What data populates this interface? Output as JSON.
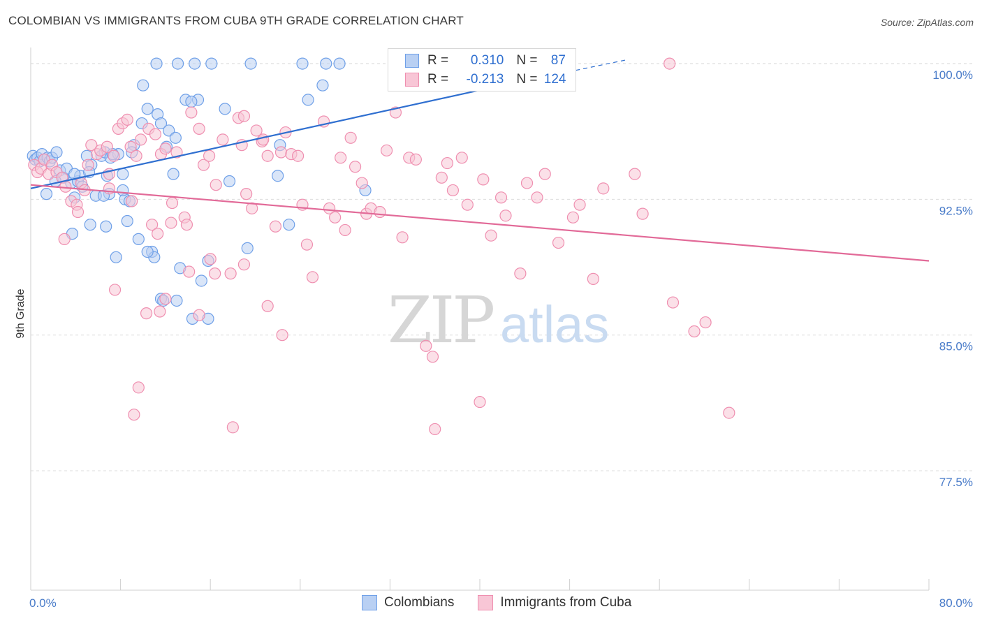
{
  "title": "COLOMBIAN VS IMMIGRANTS FROM CUBA 9TH GRADE CORRELATION CHART",
  "source": "Source: ZipAtlas.com",
  "watermark": {
    "zip": "ZIP",
    "atlas": "atlas"
  },
  "legend": {
    "rows": [
      {
        "r_label": "R = ",
        "r_value": "0.310",
        "n_label": "N = ",
        "n_value": "87",
        "color": "#6fa0e8"
      },
      {
        "r_label": "R = ",
        "r_value": "-0.213",
        "n_label": "N = ",
        "n_value": "124",
        "color": "#ef8fb0"
      }
    ]
  },
  "bottom_legend": {
    "series1": "Colombians",
    "series2": "Immigrants from Cuba"
  },
  "colors": {
    "blue_fill": "#b9d0f3",
    "blue_edge": "#6fa0e8",
    "blue_line": "#2f6fd0",
    "pink_fill": "#f8c6d6",
    "pink_edge": "#ef8fb0",
    "pink_line": "#e26a98",
    "grid": "#dcdcdc",
    "tick": "#4a7cc9"
  },
  "chart_data": {
    "type": "scatter",
    "title": "COLOMBIAN VS IMMIGRANTS FROM CUBA 9TH GRADE CORRELATION CHART",
    "xlabel": "",
    "ylabel": "9th Grade",
    "xlim": [
      0,
      80
    ],
    "ylim": [
      70.9,
      101.2
    ],
    "x_tick_labels": [
      "0.0%",
      "80.0%"
    ],
    "y_ticks": [
      77.5,
      85.0,
      92.5,
      100.0
    ],
    "y_tick_labels": [
      "77.5%",
      "85.0%",
      "92.5%",
      "100.0%"
    ],
    "grid": true,
    "legend_position": "top-center",
    "series": [
      {
        "name": "Colombians",
        "R": 0.31,
        "N": 87,
        "trend": {
          "x": [
            0,
            40.5
          ],
          "y": [
            93.1,
            98.6
          ]
        },
        "trend_dashed": {
          "x": [
            40.5,
            53
          ],
          "y": [
            98.6,
            100.2
          ]
        },
        "points": [
          [
            0.2,
            94.9
          ],
          [
            0.4,
            94.7
          ],
          [
            0.6,
            94.8
          ],
          [
            0.8,
            94.6
          ],
          [
            1.0,
            95.0
          ],
          [
            1.2,
            94.7
          ],
          [
            1.5,
            94.8
          ],
          [
            1.7,
            94.6
          ],
          [
            1.9,
            94.8
          ],
          [
            2.3,
            95.1
          ],
          [
            2.6,
            94.1
          ],
          [
            2.9,
            93.7
          ],
          [
            3.2,
            94.2
          ],
          [
            3.6,
            93.4
          ],
          [
            3.9,
            92.6
          ],
          [
            4.2,
            93.5
          ],
          [
            4.4,
            93.8
          ],
          [
            5.0,
            94.9
          ],
          [
            5.4,
            94.4
          ],
          [
            5.8,
            92.7
          ],
          [
            6.3,
            94.9
          ],
          [
            6.6,
            95.1
          ],
          [
            7.1,
            94.8
          ],
          [
            7.8,
            95.0
          ],
          [
            8.2,
            93.9
          ],
          [
            8.4,
            92.5
          ],
          [
            9.2,
            95.5
          ],
          [
            9.9,
            96.7
          ],
          [
            10.4,
            97.5
          ],
          [
            11.3,
            97.2
          ],
          [
            11.6,
            96.7
          ],
          [
            12.3,
            96.3
          ],
          [
            12.9,
            95.9
          ],
          [
            13.8,
            98.0
          ],
          [
            14.9,
            98.0
          ],
          [
            14.3,
            97.9
          ],
          [
            11.2,
            100.0
          ],
          [
            13.1,
            100.0
          ],
          [
            14.6,
            100.0
          ],
          [
            16.1,
            100.0
          ],
          [
            19.6,
            100.0
          ],
          [
            24.2,
            100.0
          ],
          [
            26.3,
            100.0
          ],
          [
            27.5,
            100.0
          ],
          [
            33.4,
            100.0
          ],
          [
            34.0,
            100.0
          ],
          [
            10.0,
            98.8
          ],
          [
            17.3,
            97.5
          ],
          [
            26.0,
            98.8
          ],
          [
            24.7,
            98.0
          ],
          [
            22.2,
            95.5
          ],
          [
            12.1,
            95.4
          ],
          [
            9.0,
            95.1
          ],
          [
            7.3,
            95.0
          ],
          [
            5.2,
            94.0
          ],
          [
            6.8,
            93.8
          ],
          [
            4.6,
            93.2
          ],
          [
            7.0,
            92.8
          ],
          [
            6.5,
            92.7
          ],
          [
            8.8,
            92.4
          ],
          [
            1.4,
            92.8
          ],
          [
            5.3,
            91.1
          ],
          [
            6.7,
            91.0
          ],
          [
            8.6,
            91.3
          ],
          [
            9.6,
            90.3
          ],
          [
            10.8,
            89.6
          ],
          [
            11.0,
            89.3
          ],
          [
            3.7,
            90.6
          ],
          [
            12.7,
            93.9
          ],
          [
            13.3,
            88.7
          ],
          [
            15.8,
            89.1
          ],
          [
            15.2,
            88.0
          ],
          [
            11.6,
            87.0
          ],
          [
            15.8,
            85.9
          ],
          [
            14.4,
            85.9
          ],
          [
            13.0,
            86.9
          ],
          [
            11.8,
            86.9
          ],
          [
            19.3,
            89.8
          ],
          [
            23.0,
            91.1
          ],
          [
            22.0,
            93.8
          ],
          [
            29.8,
            93.0
          ],
          [
            17.7,
            93.5
          ],
          [
            8.2,
            93.0
          ],
          [
            7.6,
            89.3
          ],
          [
            10.4,
            89.6
          ],
          [
            3.9,
            93.9
          ],
          [
            2.2,
            93.5
          ]
        ]
      },
      {
        "name": "Immigrants from Cuba",
        "R": -0.213,
        "N": 124,
        "trend": {
          "x": [
            0,
            80
          ],
          "y": [
            93.3,
            89.1
          ]
        },
        "points": [
          [
            0.3,
            94.4
          ],
          [
            0.6,
            94.0
          ],
          [
            0.9,
            94.2
          ],
          [
            1.2,
            94.7
          ],
          [
            1.6,
            93.9
          ],
          [
            1.9,
            94.4
          ],
          [
            2.3,
            94.0
          ],
          [
            2.8,
            93.7
          ],
          [
            3.1,
            93.2
          ],
          [
            3.6,
            92.4
          ],
          [
            4.1,
            92.2
          ],
          [
            4.5,
            93.4
          ],
          [
            5.1,
            94.4
          ],
          [
            5.4,
            95.5
          ],
          [
            5.9,
            95.0
          ],
          [
            6.2,
            95.2
          ],
          [
            6.8,
            95.4
          ],
          [
            7.0,
            93.1
          ],
          [
            7.4,
            94.9
          ],
          [
            7.8,
            96.4
          ],
          [
            8.2,
            96.7
          ],
          [
            8.6,
            96.9
          ],
          [
            8.9,
            95.4
          ],
          [
            9.4,
            94.9
          ],
          [
            9.8,
            95.8
          ],
          [
            10.5,
            96.4
          ],
          [
            11.1,
            96.1
          ],
          [
            11.6,
            95.0
          ],
          [
            12.0,
            95.3
          ],
          [
            12.6,
            92.3
          ],
          [
            13.0,
            95.1
          ],
          [
            14.3,
            97.3
          ],
          [
            15.0,
            96.4
          ],
          [
            15.4,
            94.4
          ],
          [
            15.9,
            94.9
          ],
          [
            16.5,
            93.3
          ],
          [
            17.1,
            95.8
          ],
          [
            18.5,
            97.0
          ],
          [
            18.8,
            95.5
          ],
          [
            19.2,
            92.8
          ],
          [
            19.7,
            92.0
          ],
          [
            20.1,
            96.3
          ],
          [
            20.6,
            95.7
          ],
          [
            21.1,
            94.9
          ],
          [
            21.8,
            91.0
          ],
          [
            22.3,
            95.1
          ],
          [
            22.7,
            96.2
          ],
          [
            23.2,
            95.0
          ],
          [
            23.8,
            94.9
          ],
          [
            24.2,
            92.2
          ],
          [
            24.6,
            90.0
          ],
          [
            25.1,
            88.2
          ],
          [
            26.1,
            96.8
          ],
          [
            26.6,
            92.0
          ],
          [
            27.1,
            91.5
          ],
          [
            27.6,
            94.8
          ],
          [
            28.0,
            90.8
          ],
          [
            28.5,
            95.9
          ],
          [
            28.9,
            94.3
          ],
          [
            29.5,
            93.4
          ],
          [
            29.9,
            91.7
          ],
          [
            30.3,
            92.0
          ],
          [
            31.1,
            91.8
          ],
          [
            31.7,
            95.2
          ],
          [
            32.5,
            97.3
          ],
          [
            33.1,
            90.4
          ],
          [
            33.7,
            94.8
          ],
          [
            34.3,
            94.7
          ],
          [
            35.2,
            84.4
          ],
          [
            35.8,
            83.8
          ],
          [
            36.6,
            93.7
          ],
          [
            37.1,
            94.5
          ],
          [
            37.6,
            93.0
          ],
          [
            38.4,
            94.8
          ],
          [
            38.9,
            92.2
          ],
          [
            40.3,
            93.6
          ],
          [
            41.0,
            90.5
          ],
          [
            41.9,
            92.6
          ],
          [
            42.3,
            91.6
          ],
          [
            43.6,
            88.4
          ],
          [
            44.2,
            93.4
          ],
          [
            45.1,
            92.6
          ],
          [
            45.8,
            93.9
          ],
          [
            47.0,
            90.1
          ],
          [
            48.3,
            91.5
          ],
          [
            48.9,
            92.2
          ],
          [
            50.1,
            88.1
          ],
          [
            51.0,
            93.1
          ],
          [
            53.8,
            93.9
          ],
          [
            54.5,
            91.7
          ],
          [
            56.9,
            100.0
          ],
          [
            57.2,
            86.8
          ],
          [
            59.1,
            85.2
          ],
          [
            60.1,
            85.7
          ],
          [
            62.2,
            80.7
          ],
          [
            40.0,
            81.3
          ],
          [
            36.0,
            79.8
          ],
          [
            18.0,
            79.9
          ],
          [
            9.6,
            82.1
          ],
          [
            9.2,
            80.6
          ],
          [
            7.5,
            87.5
          ],
          [
            10.3,
            86.2
          ],
          [
            11.5,
            86.3
          ],
          [
            12.0,
            87.0
          ],
          [
            14.1,
            88.5
          ],
          [
            15.0,
            86.1
          ],
          [
            16.4,
            88.4
          ],
          [
            17.8,
            88.4
          ],
          [
            19.0,
            88.9
          ],
          [
            21.1,
            86.6
          ],
          [
            22.4,
            85.0
          ],
          [
            7.0,
            93.9
          ],
          [
            3.0,
            90.3
          ],
          [
            4.2,
            91.8
          ],
          [
            9.0,
            92.4
          ],
          [
            10.8,
            91.1
          ],
          [
            11.3,
            90.6
          ],
          [
            13.7,
            91.5
          ],
          [
            13.9,
            91.1
          ],
          [
            16.0,
            89.2
          ],
          [
            12.5,
            91.2
          ],
          [
            19.0,
            97.1
          ],
          [
            20.7,
            95.8
          ],
          [
            4.8,
            93.0
          ]
        ]
      }
    ]
  }
}
